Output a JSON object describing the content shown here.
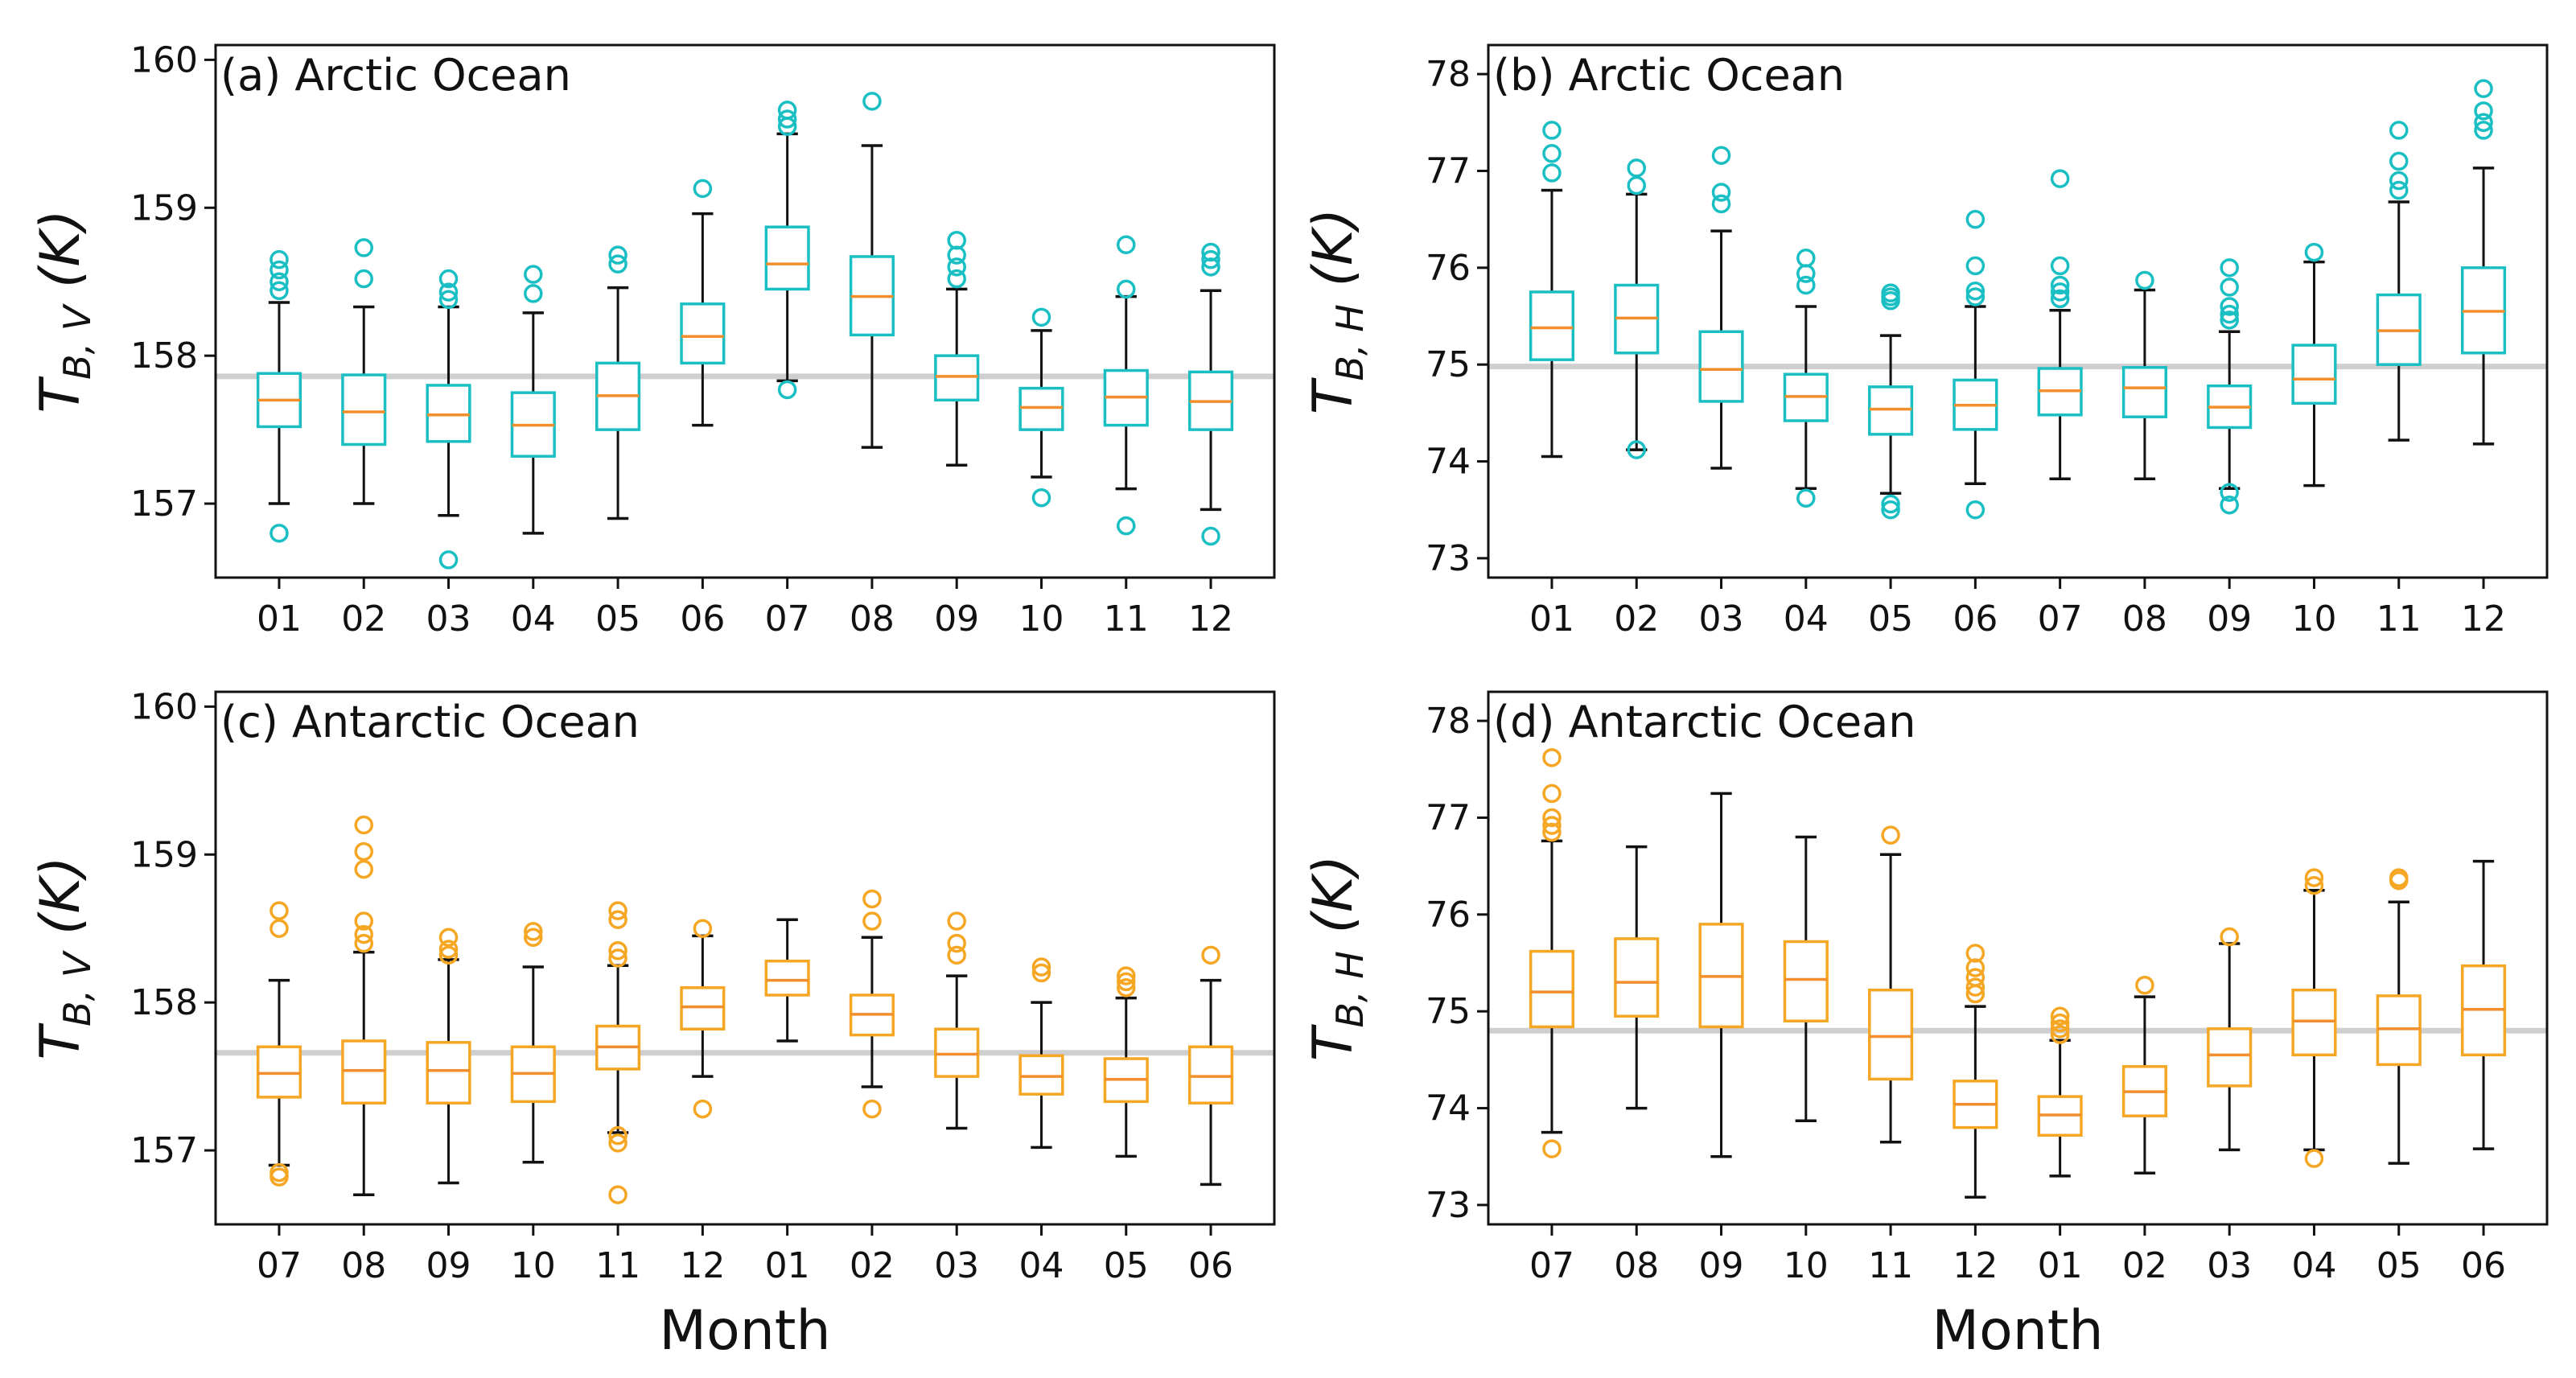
{
  "chart_data": [
    {
      "id": "a",
      "type": "box",
      "title": "(a)  Arctic Ocean",
      "ylabel": {
        "main": "T",
        "sub": "B, V",
        "unit": "(K)"
      },
      "xlabel": "",
      "ylim": [
        156.5,
        160.1
      ],
      "yticks": [
        157,
        158,
        159,
        160
      ],
      "color": "#1ABFC4",
      "median_color": "#F28E2B",
      "reference_line": 157.86,
      "categories": [
        "01",
        "02",
        "03",
        "04",
        "05",
        "06",
        "07",
        "08",
        "09",
        "10",
        "11",
        "12"
      ],
      "boxes": [
        {
          "whislo": 157.0,
          "q1": 157.52,
          "med": 157.7,
          "q3": 157.88,
          "whishi": 158.36,
          "fliers": [
            158.65,
            158.58,
            158.5,
            158.44,
            156.8
          ]
        },
        {
          "whislo": 157.0,
          "q1": 157.4,
          "med": 157.62,
          "q3": 157.87,
          "whishi": 158.33,
          "fliers": [
            158.73,
            158.52
          ]
        },
        {
          "whislo": 156.92,
          "q1": 157.42,
          "med": 157.6,
          "q3": 157.8,
          "whishi": 158.33,
          "fliers": [
            158.52,
            158.43,
            158.38,
            156.62
          ]
        },
        {
          "whislo": 156.8,
          "q1": 157.32,
          "med": 157.53,
          "q3": 157.75,
          "whishi": 158.29,
          "fliers": [
            158.55,
            158.42
          ]
        },
        {
          "whislo": 156.9,
          "q1": 157.5,
          "med": 157.73,
          "q3": 157.95,
          "whishi": 158.46,
          "fliers": [
            158.68,
            158.62
          ]
        },
        {
          "whislo": 157.53,
          "q1": 157.95,
          "med": 158.13,
          "q3": 158.35,
          "whishi": 158.96,
          "fliers": [
            159.13
          ]
        },
        {
          "whislo": 157.83,
          "q1": 158.45,
          "med": 158.62,
          "q3": 158.87,
          "whishi": 159.5,
          "fliers": [
            159.66,
            159.6,
            159.55,
            157.77
          ]
        },
        {
          "whislo": 157.38,
          "q1": 158.14,
          "med": 158.4,
          "q3": 158.67,
          "whishi": 159.42,
          "fliers": [
            159.72
          ]
        },
        {
          "whislo": 157.26,
          "q1": 157.7,
          "med": 157.86,
          "q3": 158.0,
          "whishi": 158.45,
          "fliers": [
            158.78,
            158.68,
            158.6,
            158.52
          ]
        },
        {
          "whislo": 157.18,
          "q1": 157.5,
          "med": 157.65,
          "q3": 157.78,
          "whishi": 158.17,
          "fliers": [
            158.26,
            157.04
          ]
        },
        {
          "whislo": 157.1,
          "q1": 157.53,
          "med": 157.72,
          "q3": 157.9,
          "whishi": 158.4,
          "fliers": [
            158.75,
            158.45,
            156.85
          ]
        },
        {
          "whislo": 156.96,
          "q1": 157.5,
          "med": 157.69,
          "q3": 157.89,
          "whishi": 158.44,
          "fliers": [
            158.7,
            158.65,
            158.6,
            156.78
          ]
        }
      ]
    },
    {
      "id": "b",
      "type": "box",
      "title": "(b)  Arctic Ocean",
      "ylabel": {
        "main": "T",
        "sub": "B, H",
        "unit": "(K)"
      },
      "xlabel": "",
      "ylim": [
        72.8,
        78.3
      ],
      "yticks": [
        73,
        74,
        75,
        76,
        77,
        78
      ],
      "color": "#1ABFC4",
      "median_color": "#F28E2B",
      "reference_line": 74.98,
      "categories": [
        "01",
        "02",
        "03",
        "04",
        "05",
        "06",
        "07",
        "08",
        "09",
        "10",
        "11",
        "12"
      ],
      "boxes": [
        {
          "whislo": 74.05,
          "q1": 75.05,
          "med": 75.38,
          "q3": 75.75,
          "whishi": 76.8,
          "fliers": [
            77.42,
            77.18,
            76.98
          ]
        },
        {
          "whislo": 74.12,
          "q1": 75.12,
          "med": 75.48,
          "q3": 75.82,
          "whishi": 76.76,
          "fliers": [
            77.03,
            76.85,
            74.12
          ]
        },
        {
          "whislo": 73.93,
          "q1": 74.62,
          "med": 74.95,
          "q3": 75.34,
          "whishi": 76.38,
          "fliers": [
            77.16,
            76.78,
            76.66
          ]
        },
        {
          "whislo": 73.72,
          "q1": 74.42,
          "med": 74.67,
          "q3": 74.9,
          "whishi": 75.6,
          "fliers": [
            76.1,
            75.94,
            75.82,
            73.62
          ]
        },
        {
          "whislo": 73.67,
          "q1": 74.28,
          "med": 74.54,
          "q3": 74.77,
          "whishi": 75.3,
          "fliers": [
            75.74,
            75.7,
            75.66,
            73.56,
            73.5
          ]
        },
        {
          "whislo": 73.77,
          "q1": 74.33,
          "med": 74.58,
          "q3": 74.84,
          "whishi": 75.6,
          "fliers": [
            76.5,
            76.02,
            75.76,
            75.7,
            73.5
          ]
        },
        {
          "whislo": 73.82,
          "q1": 74.48,
          "med": 74.73,
          "q3": 74.96,
          "whishi": 75.56,
          "fliers": [
            76.92,
            76.02,
            75.82,
            75.75,
            75.68
          ]
        },
        {
          "whislo": 73.82,
          "q1": 74.46,
          "med": 74.76,
          "q3": 74.97,
          "whishi": 75.77,
          "fliers": [
            75.87
          ]
        },
        {
          "whislo": 73.72,
          "q1": 74.35,
          "med": 74.56,
          "q3": 74.78,
          "whishi": 75.34,
          "fliers": [
            76.0,
            75.8,
            75.6,
            75.52,
            75.46,
            73.68,
            73.55
          ]
        },
        {
          "whislo": 73.75,
          "q1": 74.6,
          "med": 74.85,
          "q3": 75.2,
          "whishi": 76.06,
          "fliers": [
            76.16
          ]
        },
        {
          "whislo": 74.22,
          "q1": 75.0,
          "med": 75.35,
          "q3": 75.72,
          "whishi": 76.68,
          "fliers": [
            77.42,
            77.1,
            76.9,
            76.8
          ]
        },
        {
          "whislo": 74.18,
          "q1": 75.12,
          "med": 75.55,
          "q3": 76.0,
          "whishi": 77.03,
          "fliers": [
            77.85,
            77.62,
            77.5,
            77.42
          ]
        }
      ]
    },
    {
      "id": "c",
      "type": "box",
      "title": "(c)  Antarctic Ocean",
      "ylabel": {
        "main": "T",
        "sub": "B, V",
        "unit": "(K)"
      },
      "xlabel": "Month",
      "ylim": [
        156.5,
        160.1
      ],
      "yticks": [
        157,
        158,
        159,
        160
      ],
      "color": "#F5A623",
      "median_color": "#F28E2B",
      "reference_line": 157.66,
      "categories": [
        "07",
        "08",
        "09",
        "10",
        "11",
        "12",
        "01",
        "02",
        "03",
        "04",
        "05",
        "06"
      ],
      "boxes": [
        {
          "whislo": 156.9,
          "q1": 157.36,
          "med": 157.52,
          "q3": 157.7,
          "whishi": 158.15,
          "fliers": [
            158.62,
            158.5,
            156.85,
            156.82
          ]
        },
        {
          "whislo": 156.7,
          "q1": 157.32,
          "med": 157.54,
          "q3": 157.74,
          "whishi": 158.34,
          "fliers": [
            159.2,
            159.02,
            158.9,
            158.55,
            158.46,
            158.4
          ]
        },
        {
          "whislo": 156.78,
          "q1": 157.32,
          "med": 157.54,
          "q3": 157.73,
          "whishi": 158.29,
          "fliers": [
            158.44,
            158.36,
            158.32
          ]
        },
        {
          "whislo": 156.92,
          "q1": 157.33,
          "med": 157.52,
          "q3": 157.7,
          "whishi": 158.24,
          "fliers": [
            158.48,
            158.44
          ]
        },
        {
          "whislo": 157.12,
          "q1": 157.55,
          "med": 157.7,
          "q3": 157.84,
          "whishi": 158.25,
          "fliers": [
            158.62,
            158.56,
            158.35,
            158.3,
            157.1,
            157.05,
            156.7
          ]
        },
        {
          "whislo": 157.5,
          "q1": 157.82,
          "med": 157.97,
          "q3": 158.1,
          "whishi": 158.45,
          "fliers": [
            158.5,
            157.28
          ]
        },
        {
          "whislo": 157.74,
          "q1": 158.05,
          "med": 158.15,
          "q3": 158.28,
          "whishi": 158.56,
          "fliers": []
        },
        {
          "whislo": 157.43,
          "q1": 157.78,
          "med": 157.92,
          "q3": 158.05,
          "whishi": 158.44,
          "fliers": [
            158.7,
            158.55,
            157.28
          ]
        },
        {
          "whislo": 157.15,
          "q1": 157.5,
          "med": 157.65,
          "q3": 157.82,
          "whishi": 158.18,
          "fliers": [
            158.55,
            158.4,
            158.32
          ]
        },
        {
          "whislo": 157.02,
          "q1": 157.38,
          "med": 157.5,
          "q3": 157.64,
          "whishi": 158.0,
          "fliers": [
            158.24,
            158.2
          ]
        },
        {
          "whislo": 156.96,
          "q1": 157.33,
          "med": 157.48,
          "q3": 157.62,
          "whishi": 158.03,
          "fliers": [
            158.18,
            158.14,
            158.1
          ]
        },
        {
          "whislo": 156.77,
          "q1": 157.32,
          "med": 157.5,
          "q3": 157.7,
          "whishi": 158.15,
          "fliers": [
            158.32
          ]
        }
      ]
    },
    {
      "id": "d",
      "type": "box",
      "title": "(d)  Antarctic Ocean",
      "ylabel": {
        "main": "T",
        "sub": "B, H",
        "unit": "(K)"
      },
      "xlabel": "Month",
      "ylim": [
        72.8,
        78.3
      ],
      "yticks": [
        73,
        74,
        75,
        76,
        77,
        78
      ],
      "color": "#F5A623",
      "median_color": "#F28E2B",
      "reference_line": 74.8,
      "categories": [
        "07",
        "08",
        "09",
        "10",
        "11",
        "12",
        "01",
        "02",
        "03",
        "04",
        "05",
        "06"
      ],
      "boxes": [
        {
          "whislo": 73.75,
          "q1": 74.84,
          "med": 75.2,
          "q3": 75.62,
          "whishi": 76.76,
          "fliers": [
            77.62,
            77.25,
            77.0,
            76.92,
            76.85,
            73.58
          ]
        },
        {
          "whislo": 74.0,
          "q1": 74.95,
          "med": 75.3,
          "q3": 75.75,
          "whishi": 76.7,
          "fliers": []
        },
        {
          "whislo": 73.5,
          "q1": 74.84,
          "med": 75.36,
          "q3": 75.9,
          "whishi": 77.25,
          "fliers": []
        },
        {
          "whislo": 73.87,
          "q1": 74.9,
          "med": 75.33,
          "q3": 75.72,
          "whishi": 76.8,
          "fliers": []
        },
        {
          "whislo": 73.65,
          "q1": 74.3,
          "med": 74.74,
          "q3": 75.22,
          "whishi": 76.62,
          "fliers": [
            76.82
          ]
        },
        {
          "whislo": 73.08,
          "q1": 73.8,
          "med": 74.04,
          "q3": 74.28,
          "whishi": 75.05,
          "fliers": [
            75.6,
            75.45,
            75.35,
            75.25,
            75.18
          ]
        },
        {
          "whislo": 73.3,
          "q1": 73.72,
          "med": 73.93,
          "q3": 74.12,
          "whishi": 74.7,
          "fliers": [
            74.95,
            74.88,
            74.82,
            74.76
          ]
        },
        {
          "whislo": 73.33,
          "q1": 73.92,
          "med": 74.17,
          "q3": 74.43,
          "whishi": 75.15,
          "fliers": [
            75.27
          ]
        },
        {
          "whislo": 73.57,
          "q1": 74.23,
          "med": 74.55,
          "q3": 74.82,
          "whishi": 75.7,
          "fliers": [
            75.77
          ]
        },
        {
          "whislo": 73.57,
          "q1": 74.55,
          "med": 74.9,
          "q3": 75.22,
          "whishi": 76.25,
          "fliers": [
            76.38,
            76.3,
            73.48
          ]
        },
        {
          "whislo": 73.43,
          "q1": 74.45,
          "med": 74.82,
          "q3": 75.16,
          "whishi": 76.13,
          "fliers": [
            76.38,
            76.35
          ]
        },
        {
          "whislo": 73.58,
          "q1": 74.55,
          "med": 75.02,
          "q3": 75.47,
          "whishi": 76.55,
          "fliers": []
        }
      ]
    }
  ]
}
